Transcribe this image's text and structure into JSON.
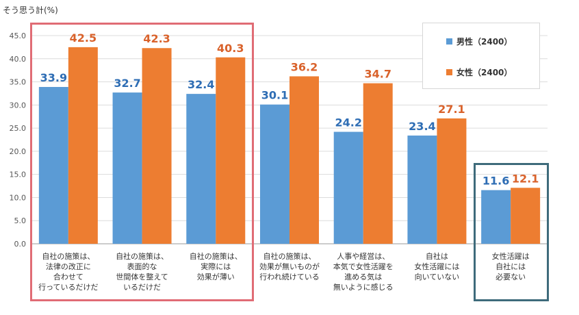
{
  "unit_title": "そう思う計(%)",
  "colors": {
    "male": "#5B9BD5",
    "female": "#ED7D31",
    "male_label": "#2E6DB4",
    "female_label": "#D9622B",
    "highlight_red": "#E06C75",
    "highlight_teal": "#3E6B7B",
    "grid": "#dcdcdc",
    "axis": "#999999"
  },
  "legend": [
    {
      "name": "男性（2400）",
      "color": "#5B9BD5"
    },
    {
      "name": "女性（2400）",
      "color": "#ED7D31"
    }
  ],
  "chart_data": {
    "type": "bar",
    "title": "",
    "ylabel": "そう思う計(%)",
    "ylim": [
      0,
      45
    ],
    "yticks": [
      "0.0",
      "5.0",
      "10.0",
      "15.0",
      "20.0",
      "25.0",
      "30.0",
      "35.0",
      "40.0",
      "45.0"
    ],
    "grid": true,
    "legend_position": "top-right",
    "categories": [
      "自社の施策は、\n法律の改正に\n合わせて\n行っているだけだ",
      "自社の施策は、\n表面的な\n世間体を整えて\nいるだけだ",
      "自社の施策は、\n実際には\n効果が薄い",
      "自社の施策は、\n効果が無いものが\n行われ続けている",
      "人事や経営は、\n本気で女性活躍を\n進める気は\n無いように感じる",
      "自社は\n女性活躍には\n向いていない",
      "女性活躍は\n自社には\n必要ない"
    ],
    "series": [
      {
        "name": "男性（2400）",
        "values": [
          33.9,
          32.7,
          32.4,
          30.1,
          24.2,
          23.4,
          11.6
        ],
        "labels": [
          "33.9",
          "32.7",
          "32.4",
          "30.1",
          "24.2",
          "23.4",
          "11.6"
        ]
      },
      {
        "name": "女性（2400）",
        "values": [
          42.5,
          42.3,
          40.3,
          36.2,
          34.7,
          27.1,
          12.1
        ],
        "labels": [
          "42.5",
          "42.3",
          "40.3",
          "36.2",
          "34.7",
          "27.1",
          "12.1"
        ]
      }
    ]
  }
}
